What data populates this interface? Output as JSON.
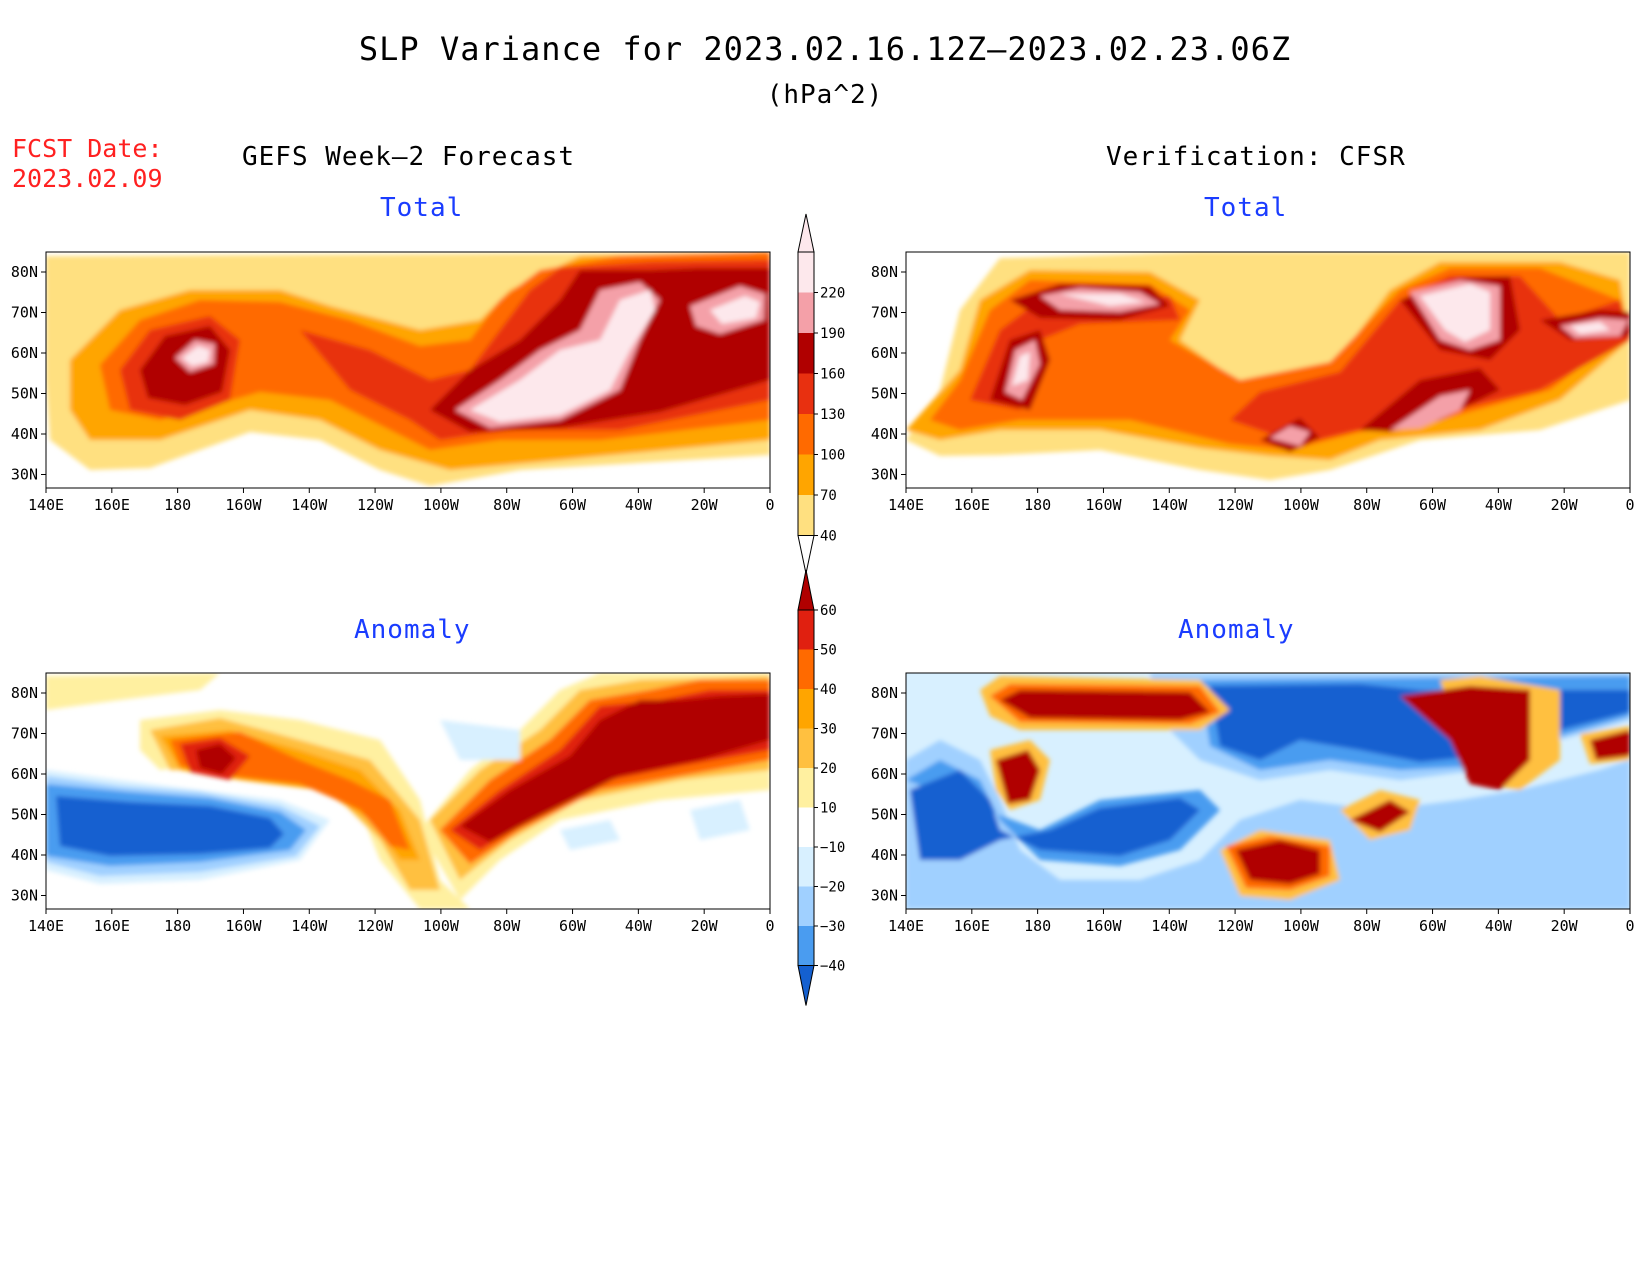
{
  "title": "SLP Variance for 2023.02.16.12Z–2023.02.23.06Z",
  "units": "(hPa^2)",
  "fcst_date": {
    "label": "FCST Date:",
    "value": "2023.02.09"
  },
  "columns": {
    "forecast": "GEFS Week–2 Forecast",
    "verification": "Verification: CFSR"
  },
  "panel_titles": {
    "total": "Total",
    "anomaly": "Anomaly"
  },
  "map_axes": {
    "lon_labels": [
      "140E",
      "160E",
      "180",
      "160W",
      "140W",
      "120W",
      "100W",
      "80W",
      "60W",
      "40W",
      "20W",
      "0"
    ],
    "lat_labels": [
      "80N",
      "70N",
      "60N",
      "50N",
      "40N",
      "30N"
    ]
  },
  "colorbars": {
    "total": {
      "levels": [
        "40",
        "70",
        "100",
        "130",
        "160",
        "190",
        "220"
      ],
      "colors": [
        "#ffe080",
        "#ffa500",
        "#ff6a00",
        "#e83010",
        "#b00000",
        "#f4a0a8",
        "#fde8ec"
      ]
    },
    "anomaly": {
      "levels": [
        "60",
        "50",
        "40",
        "30",
        "20",
        "10",
        "−10",
        "−20",
        "−30",
        "−40"
      ],
      "colors": [
        "#b00000",
        "#e02010",
        "#ff6a00",
        "#ffa500",
        "#ffc040",
        "#fff0a0",
        "#ffffff",
        "#d8f0ff",
        "#a0d0ff",
        "#4a9cf0",
        "#1460d0"
      ]
    }
  },
  "colors": {
    "title_blue": "#1a3cff",
    "fcst_red": "#ff2020"
  }
}
